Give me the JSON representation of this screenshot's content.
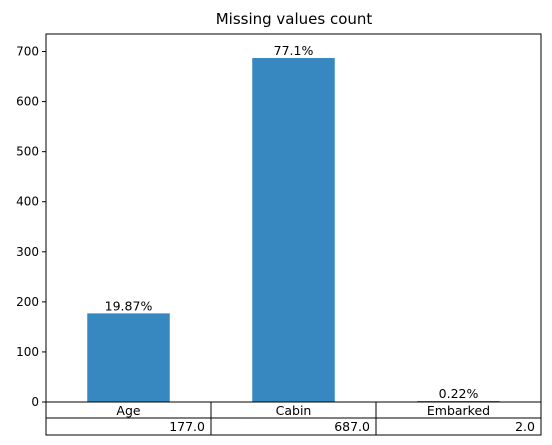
{
  "chart_data": {
    "type": "bar",
    "title": "Missing values count",
    "xlabel": "",
    "ylabel": "",
    "categories": [
      "Age",
      "Cabin",
      "Embarked"
    ],
    "values": [
      177,
      687,
      2
    ],
    "data_labels": [
      "19.87%",
      "77.1%",
      "0.22%"
    ],
    "ylim": [
      0,
      735
    ],
    "yticks": [
      0,
      100,
      200,
      300,
      400,
      500,
      600,
      700
    ],
    "bar_color": "#3787c0",
    "grid": false,
    "legend": "none",
    "table": {
      "header": [
        "Age",
        "Cabin",
        "Embarked"
      ],
      "row": [
        "177.0",
        "687.0",
        "2.0"
      ]
    }
  }
}
